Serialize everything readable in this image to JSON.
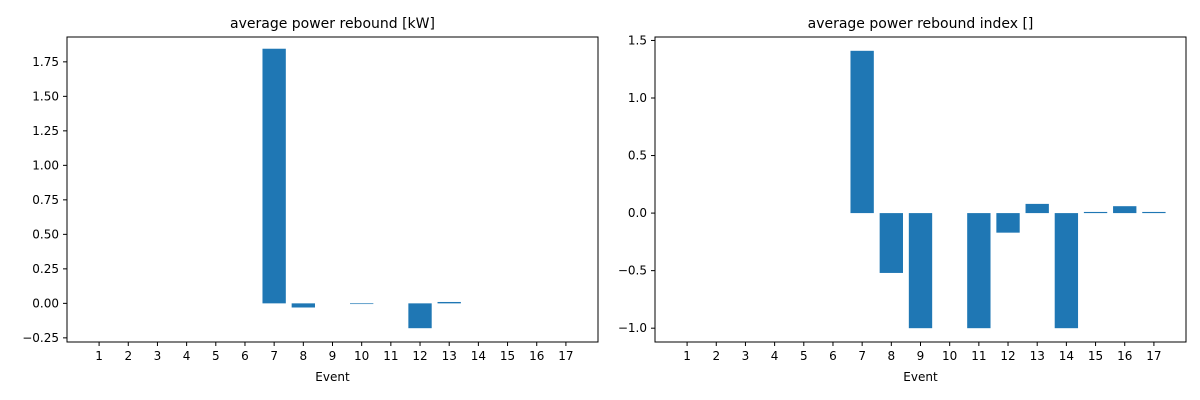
{
  "chart_data": [
    {
      "type": "bar",
      "title": "average power rebound [kW]",
      "xlabel": "Event",
      "ylabel": "",
      "categories": [
        "1",
        "2",
        "3",
        "4",
        "5",
        "6",
        "7",
        "8",
        "9",
        "10",
        "11",
        "12",
        "13",
        "14",
        "15",
        "16",
        "17"
      ],
      "values": [
        0,
        0,
        0,
        0,
        0,
        0,
        1.845,
        -0.03,
        0,
        -0.005,
        0,
        -0.18,
        0.01,
        0,
        0,
        0,
        0
      ],
      "ylim": [
        -0.28,
        1.93
      ],
      "yticks": [
        -0.25,
        0.0,
        0.25,
        0.5,
        0.75,
        1.0,
        1.25,
        1.5,
        1.75
      ],
      "ytick_labels": [
        "−0.25",
        "0.00",
        "0.25",
        "0.50",
        "0.75",
        "1.00",
        "1.25",
        "1.50",
        "1.75"
      ],
      "color": "#1f77b4",
      "grid": false
    },
    {
      "type": "bar",
      "title": "average power rebound index []",
      "xlabel": "Event",
      "ylabel": "",
      "categories": [
        "1",
        "2",
        "3",
        "4",
        "5",
        "6",
        "7",
        "8",
        "9",
        "10",
        "11",
        "12",
        "13",
        "14",
        "15",
        "16",
        "17"
      ],
      "values": [
        0,
        0,
        0,
        0,
        0,
        0,
        1.41,
        -0.52,
        -1.0,
        0,
        -1.0,
        -0.17,
        0.08,
        -1.0,
        0.01,
        0.06,
        0.01
      ],
      "ylim": [
        -1.12,
        1.53
      ],
      "yticks": [
        -1.0,
        -0.5,
        0.0,
        0.5,
        1.0,
        1.5
      ],
      "ytick_labels": [
        "−1.0",
        "−0.5",
        "0.0",
        "0.5",
        "1.0",
        "1.5"
      ],
      "color": "#1f77b4",
      "grid": false
    }
  ]
}
